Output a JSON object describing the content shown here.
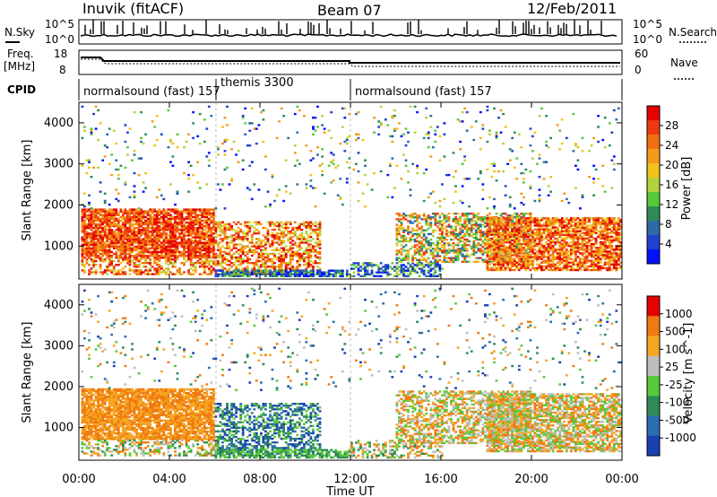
{
  "header": {
    "station": "Inuvik (fitACF)",
    "beam": "Beam 07",
    "date": "12/Feb/2011"
  },
  "status_panel": {
    "nsky_label": "N.Sky",
    "nsky_ticks": [
      "10^5",
      "10^0"
    ],
    "nsearch_label": "N.Search",
    "nsearch_ticks": [
      "10^5",
      "10^0"
    ],
    "freq_label": "Freq.",
    "freq_unit": "[MHz]",
    "freq_ticks": [
      "18",
      "8"
    ],
    "nave_label": "Nave",
    "nave_ticks": [
      "60",
      "0"
    ],
    "cpid_label": "CPID",
    "cpid_segments": [
      {
        "label": "normalsound (fast) 157",
        "start_hour": 0,
        "end_hour": 6
      },
      {
        "label": "themis 3300",
        "start_hour": 6,
        "end_hour": 12
      },
      {
        "label": "normalsound (fast) 157",
        "start_hour": 12,
        "end_hour": 24
      }
    ]
  },
  "chart_data": [
    {
      "type": "heatmap",
      "name": "power",
      "ylabel": "Slant Range [km]",
      "yticks": [
        "1000",
        "2000",
        "3000",
        "4000"
      ],
      "ylim": [
        200,
        4500
      ],
      "xlim_hours": [
        0,
        24
      ],
      "colorbar_label": "Power [dB]",
      "colorbar_ticks": [
        "28",
        "24",
        "20",
        "16",
        "12",
        "8",
        "4"
      ],
      "colorbar_colors": [
        "#0010ff",
        "#2040d0",
        "#2f6aa8",
        "#2e8b57",
        "#5ac83a",
        "#b4d23c",
        "#f2c21b",
        "#f49a1a",
        "#f07010",
        "#ee3810",
        "#e60000"
      ]
    },
    {
      "type": "heatmap",
      "name": "velocity",
      "ylabel": "Slant Range [km]",
      "yticks": [
        "1000",
        "2000",
        "3000",
        "4000"
      ],
      "ylim": [
        200,
        4500
      ],
      "xlim_hours": [
        0,
        24
      ],
      "colorbar_label": "Velocity [m s^-1]",
      "colorbar_ticks": [
        "1000",
        "500",
        "100",
        "25",
        "-25",
        "-100",
        "-500",
        "-1000"
      ],
      "colorbar_colors": [
        "#1a3fb0",
        "#2a6eb0",
        "#2e8b57",
        "#5ac83a",
        "#bebebe",
        "#f5a623",
        "#f07a10",
        "#e60000"
      ]
    }
  ],
  "x_axis": {
    "ticks": [
      "00:00",
      "04:00",
      "08:00",
      "12:00",
      "16:00",
      "20:00",
      "00:00"
    ],
    "label": "Time UT"
  }
}
